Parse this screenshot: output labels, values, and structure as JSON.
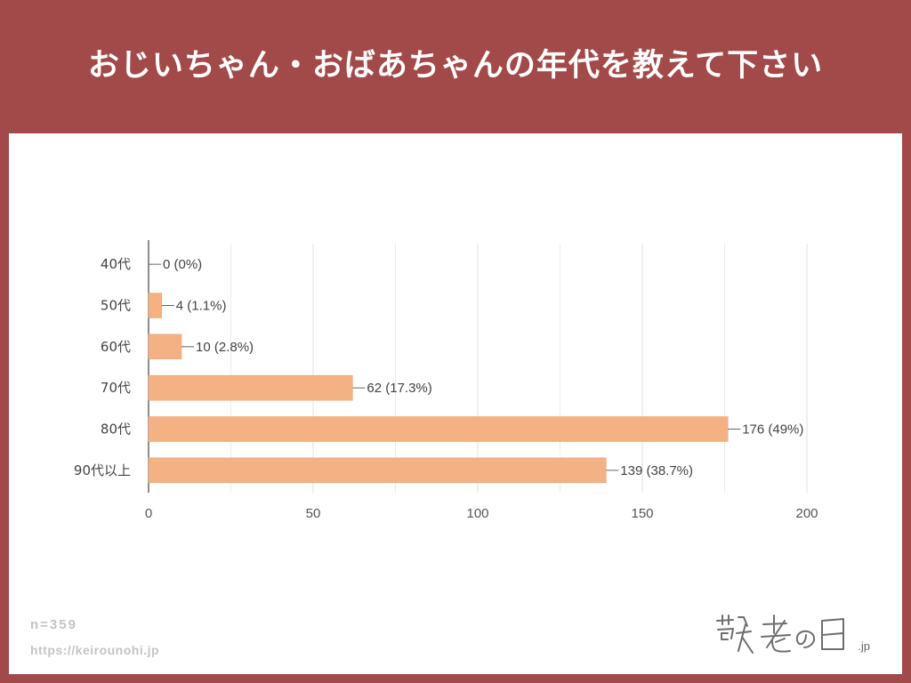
{
  "header": {
    "title": "おじいちゃん・おばあちゃんの年代を教えて下さい"
  },
  "footer": {
    "n_label": "n=359",
    "url": "https://keirounohi.jp"
  },
  "logo": {
    "text": "敬老の日",
    "suffix": ".jp"
  },
  "colors": {
    "background": "#a24a4a",
    "bar": "#f4b183",
    "bar_outline": "#e8a070"
  },
  "chart_data": {
    "type": "bar",
    "orientation": "horizontal",
    "title": "",
    "xlabel": "",
    "ylabel": "",
    "categories": [
      "40代",
      "50代",
      "60代",
      "70代",
      "80代",
      "90代以上"
    ],
    "values": [
      0,
      4,
      10,
      62,
      176,
      139
    ],
    "data_labels": [
      "0 (0%)",
      "4 (1.1%)",
      "10 (2.8%)",
      "62 (17.3%)",
      "176 (49%)",
      "139 (38.7%)"
    ],
    "xlim": [
      0,
      200
    ],
    "xticks": [
      0,
      50,
      100,
      150,
      200
    ],
    "grid": true,
    "legend": "none"
  }
}
